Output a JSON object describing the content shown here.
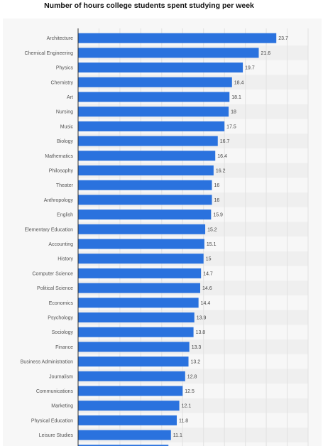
{
  "chart_data": {
    "type": "bar",
    "orientation": "horizontal",
    "title": "Number of hours college students spent studying per week",
    "xlabel": "",
    "ylabel": "",
    "grid": true,
    "xlim": [
      0,
      27.5
    ],
    "categories": [
      "Architecture",
      "Chemical Engineering",
      "Physics",
      "Chemistry",
      "Art",
      "Nursing",
      "Music",
      "Biology",
      "Mathematics",
      "Philosophy",
      "Theater",
      "Anthropology",
      "English",
      "Elementary Education",
      "Accounting",
      "History",
      "Computer Science",
      "Political Science",
      "Economics",
      "Psychology",
      "Sociology",
      "Finance",
      "Business Administration",
      "Journalism",
      "Communications",
      "Marketing",
      "Physical Education",
      "Leisure Studies"
    ],
    "values": [
      23.7,
      21.6,
      19.7,
      18.4,
      18.1,
      18,
      17.5,
      16.7,
      16.4,
      16.2,
      16,
      16,
      15.9,
      15.2,
      15.1,
      15,
      14.7,
      14.6,
      14.4,
      13.9,
      13.8,
      13.3,
      13.2,
      12.8,
      12.5,
      12.1,
      11.8,
      11.1
    ],
    "value_labels": [
      "23.7",
      "21.6",
      "19.7",
      "18.4",
      "18.1",
      "18",
      "17.5",
      "16.7",
      "16.4",
      "16.2",
      "16",
      "16",
      "15.9",
      "15.2",
      "15.1",
      "15",
      "14.7",
      "14.6",
      "14.4",
      "13.9",
      "13.8",
      "13.3",
      "13.2",
      "12.8",
      "12.5",
      "12.1",
      "11.8",
      "11.1"
    ],
    "partial_last_value": 10.8,
    "colors": {
      "bar": "#2a72de",
      "grid": "#e2e2e2",
      "axis": "#333333",
      "stripe": "#efefef"
    }
  }
}
